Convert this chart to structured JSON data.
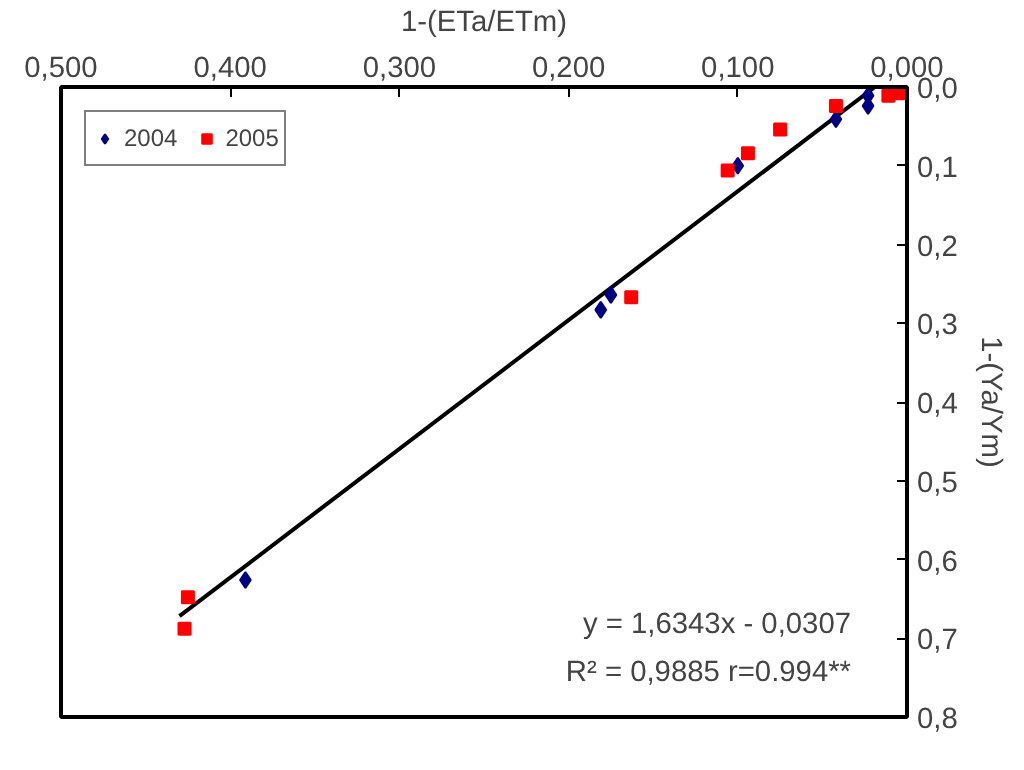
{
  "chart_data": {
    "type": "scatter",
    "xlabel": "1-(ETa/ETm)",
    "ylabel": "1-(Ya/Ym)",
    "xlim": [
      0.5,
      0.0
    ],
    "ylim": [
      0.8,
      0.0
    ],
    "xticks": [
      {
        "value": 0.5,
        "label": "0,500"
      },
      {
        "value": 0.4,
        "label": "0,400"
      },
      {
        "value": 0.3,
        "label": "0,300"
      },
      {
        "value": 0.2,
        "label": "0,200"
      },
      {
        "value": 0.1,
        "label": "0,100"
      },
      {
        "value": 0.0,
        "label": "0,000"
      }
    ],
    "yticks": [
      {
        "value": 0.0,
        "label": "0,0"
      },
      {
        "value": 0.1,
        "label": "0,1"
      },
      {
        "value": 0.2,
        "label": "0,2"
      },
      {
        "value": 0.3,
        "label": "0,3"
      },
      {
        "value": 0.4,
        "label": "0,4"
      },
      {
        "value": 0.5,
        "label": "0,5"
      },
      {
        "value": 0.6,
        "label": "0,6"
      },
      {
        "value": 0.7,
        "label": "0,7"
      },
      {
        "value": 0.8,
        "label": "0,8"
      }
    ],
    "grid": false,
    "legend": "top left",
    "series": [
      {
        "name": "2004",
        "color": "#000080",
        "marker": "diamond",
        "x": [
          0.023,
          0.023,
          0.042,
          0.1,
          0.175,
          0.181,
          0.391
        ],
        "values": [
          0.011,
          0.024,
          0.041,
          0.1,
          0.264,
          0.283,
          0.626
        ]
      },
      {
        "name": "2005",
        "color": "#ff0000",
        "marker": "square",
        "x": [
          0.005,
          0.011,
          0.042,
          0.075,
          0.094,
          0.106,
          0.163,
          0.425,
          0.427
        ],
        "values": [
          0.008,
          0.011,
          0.024,
          0.054,
          0.084,
          0.106,
          0.267,
          0.648,
          0.688
        ]
      },
      {
        "type": "line",
        "color": "#000000",
        "marker": "none",
        "line_style": "solid",
        "x": [
          0.43,
          0.019
        ],
        "values": [
          0.672,
          0.0
        ]
      }
    ],
    "annotations": [
      "y = 1,6343x - 0,0307",
      "R² = 0,9885 r=0.994**"
    ]
  }
}
